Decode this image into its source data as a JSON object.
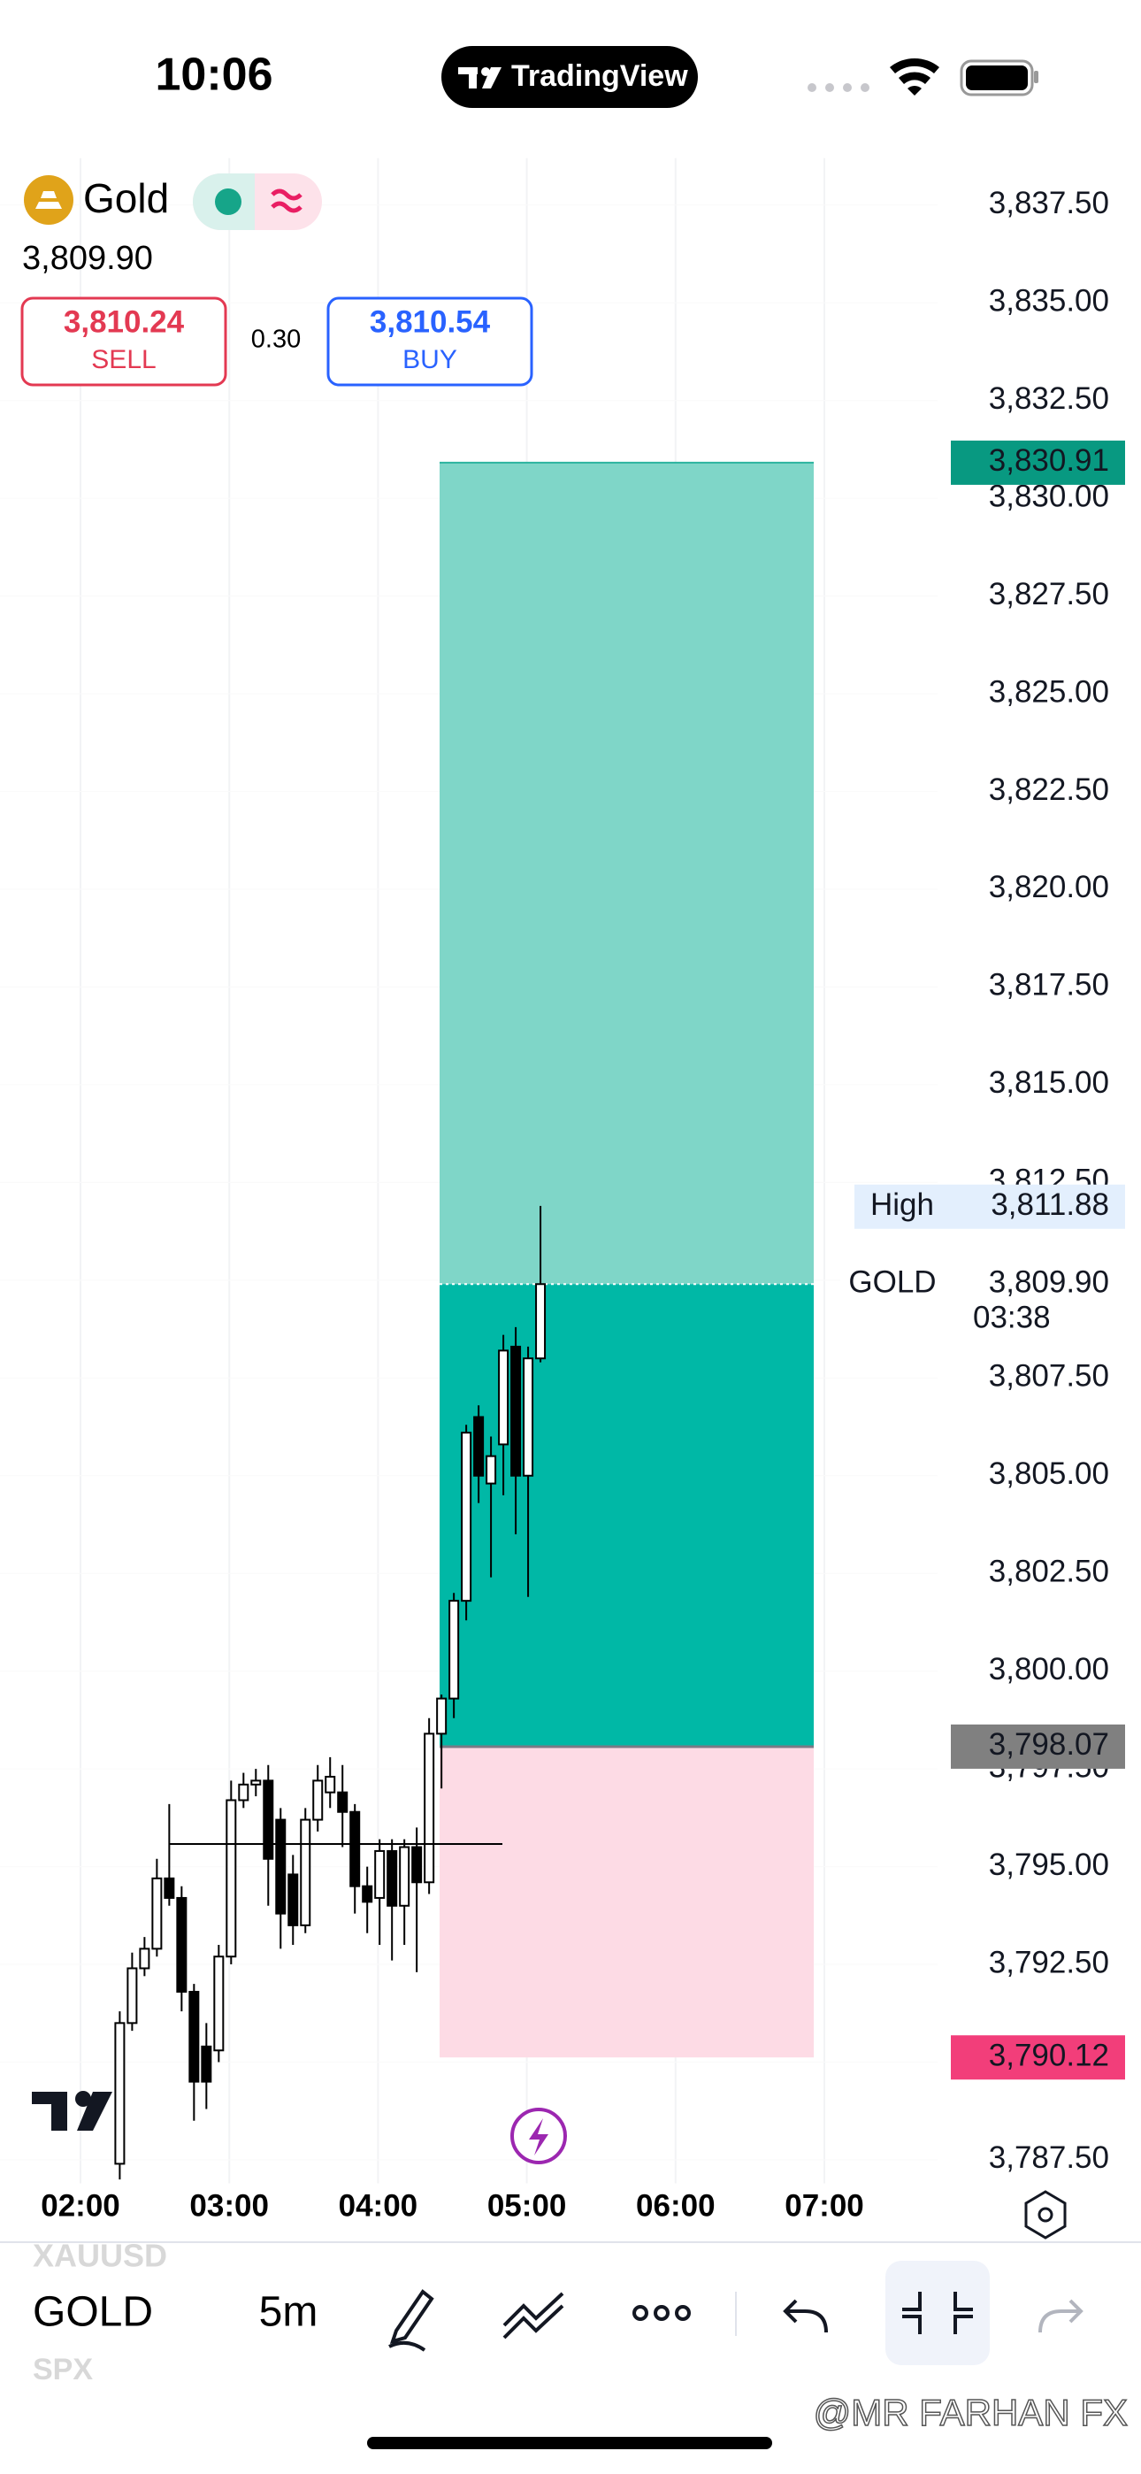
{
  "status_bar": {
    "time": "10:06",
    "app": "TradingView"
  },
  "symbol": {
    "name": "Gold",
    "price": "3,809.90",
    "sell": {
      "price": "3,810.24",
      "label": "SELL"
    },
    "spread": "0.30",
    "buy": {
      "price": "3,810.54",
      "label": "BUY"
    }
  },
  "chart_data": {
    "type": "candlestick",
    "ylim": [
      3786.9,
      3838.7
    ],
    "yticks": [
      {
        "value": 3837.5,
        "label": "3,837.50"
      },
      {
        "value": 3835,
        "label": "3,835.00"
      },
      {
        "value": 3832.5,
        "label": "3,832.50"
      },
      {
        "value": 3830,
        "label": "3,830.00"
      },
      {
        "value": 3827.5,
        "label": "3,827.50"
      },
      {
        "value": 3825,
        "label": "3,825.00"
      },
      {
        "value": 3822.5,
        "label": "3,822.50"
      },
      {
        "value": 3820,
        "label": "3,820.00"
      },
      {
        "value": 3817.5,
        "label": "3,817.50"
      },
      {
        "value": 3815,
        "label": "3,815.00"
      },
      {
        "value": 3812.5,
        "label": "3,812.50"
      },
      {
        "value": 3810,
        "label": "3,810.00"
      },
      {
        "value": 3807.5,
        "label": "3,807.50"
      },
      {
        "value": 3805,
        "label": "3,805.00"
      },
      {
        "value": 3802.5,
        "label": "3,802.50"
      },
      {
        "value": 3800,
        "label": "3,800.00"
      },
      {
        "value": 3797.5,
        "label": "3,797.50"
      },
      {
        "value": 3795,
        "label": "3,795.00"
      },
      {
        "value": 3792.5,
        "label": "3,792.50"
      },
      {
        "value": 3790,
        "label": "3,790.00"
      },
      {
        "value": 3787.5,
        "label": "3,787.50"
      }
    ],
    "time_labels": [
      "02:00",
      "03:00",
      "04:00",
      "05:00",
      "06:00",
      "07:00"
    ],
    "open": [
      3787.4,
      3791.0,
      3792.4,
      3792.9,
      3794.7,
      3794.2,
      3791.8,
      3790.4,
      3790.3,
      3792.7,
      3796.7,
      3797.1,
      3797.2,
      3796.2,
      3794.8,
      3793.5,
      3796.2,
      3796.9,
      3796.9,
      3796.4,
      3794.5,
      3794.2,
      3795.4,
      3794.0,
      3795.5,
      3794.6,
      3798.4,
      3799.3,
      3801.8,
      3806.5,
      3804.8,
      3805.8,
      3808.3,
      3805.0,
      3808.0
    ],
    "high": [
      3791.3,
      3792.8,
      3793.2,
      3795.2,
      3796.6,
      3794.5,
      3792.0,
      3791.0,
      3793.0,
      3797.2,
      3797.4,
      3797.5,
      3797.6,
      3796.5,
      3795.3,
      3796.5,
      3797.6,
      3797.8,
      3797.6,
      3796.6,
      3795.0,
      3795.7,
      3795.7,
      3795.7,
      3796.0,
      3798.8,
      3799.4,
      3802.0,
      3806.3,
      3806.8,
      3806.0,
      3808.6,
      3808.8,
      3808.3,
      3811.9
    ],
    "low": [
      3787.0,
      3790.8,
      3792.2,
      3792.7,
      3794.0,
      3791.3,
      3788.5,
      3788.8,
      3790.0,
      3792.5,
      3796.5,
      3796.8,
      3794.0,
      3792.9,
      3793.0,
      3793.3,
      3795.9,
      3796.5,
      3795.5,
      3793.8,
      3793.3,
      3793.0,
      3792.6,
      3793.0,
      3792.3,
      3794.3,
      3797.0,
      3798.8,
      3801.3,
      3804.3,
      3802.4,
      3804.5,
      3803.5,
      3801.9,
      3807.9
    ],
    "close": [
      3791.0,
      3792.4,
      3792.9,
      3794.7,
      3794.2,
      3791.8,
      3789.5,
      3789.5,
      3792.7,
      3796.7,
      3797.1,
      3797.2,
      3795.2,
      3793.8,
      3793.5,
      3796.2,
      3797.2,
      3797.3,
      3796.4,
      3794.5,
      3794.1,
      3795.4,
      3794.0,
      3795.5,
      3794.6,
      3798.4,
      3799.3,
      3801.8,
      3806.1,
      3805.0,
      3805.5,
      3808.2,
      3805.0,
      3808.0,
      3809.9
    ],
    "position": {
      "target": {
        "value": 3830.91,
        "label": "3,830.91"
      },
      "entry": {
        "value": 3798.07,
        "label": "3,798.07"
      },
      "stop": {
        "value": 3790.12,
        "label": "3,790.12"
      }
    },
    "last_price": {
      "name": "GOLD",
      "value": 3809.9,
      "label": "3,809.90",
      "countdown": "03:38"
    },
    "session_high": {
      "name": "High",
      "value": 3811.88,
      "label": "3,811.88"
    },
    "drawn_line": 3795.58
  },
  "toolbar": {
    "symbol": "GOLD",
    "interval": "5m",
    "previous_symbol": "XAUUSD",
    "next_symbol": "SPX"
  },
  "watermark": "@MR FARHAN FX"
}
